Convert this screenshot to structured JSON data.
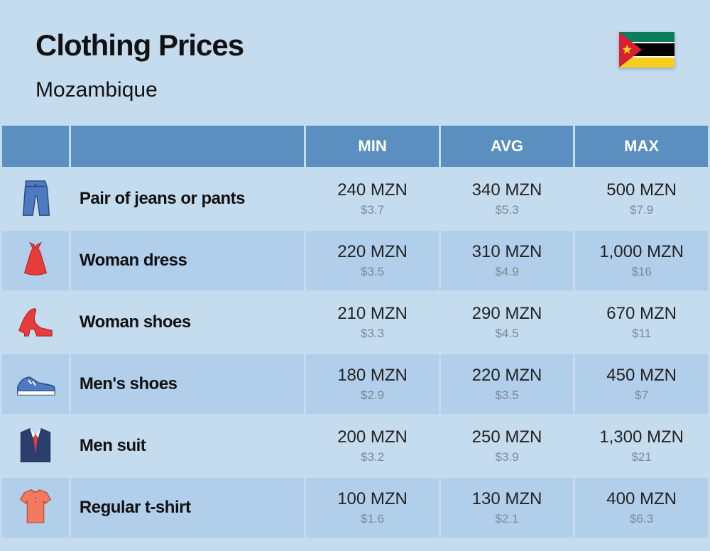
{
  "header": {
    "title": "Clothing Prices",
    "country": "Mozambique"
  },
  "flag": {
    "stripes": [
      "#0a7e5a",
      "#ffffff",
      "#000000",
      "#ffffff",
      "#f8cf1a"
    ],
    "triangle": "#d81f32",
    "star": "#f8cf1a"
  },
  "columns": {
    "min": "MIN",
    "avg": "AVG",
    "max": "MAX"
  },
  "rows": [
    {
      "icon": "jeans",
      "name": "Pair of jeans or pants",
      "min": {
        "main": "240 MZN",
        "sub": "$3.7"
      },
      "avg": {
        "main": "340 MZN",
        "sub": "$5.3"
      },
      "max": {
        "main": "500 MZN",
        "sub": "$7.9"
      }
    },
    {
      "icon": "dress",
      "name": "Woman dress",
      "min": {
        "main": "220 MZN",
        "sub": "$3.5"
      },
      "avg": {
        "main": "310 MZN",
        "sub": "$4.9"
      },
      "max": {
        "main": "1,000 MZN",
        "sub": "$16"
      }
    },
    {
      "icon": "heel",
      "name": "Woman shoes",
      "min": {
        "main": "210 MZN",
        "sub": "$3.3"
      },
      "avg": {
        "main": "290 MZN",
        "sub": "$4.5"
      },
      "max": {
        "main": "670 MZN",
        "sub": "$11"
      }
    },
    {
      "icon": "sneaker",
      "name": "Men's shoes",
      "min": {
        "main": "180 MZN",
        "sub": "$2.9"
      },
      "avg": {
        "main": "220 MZN",
        "sub": "$3.5"
      },
      "max": {
        "main": "450 MZN",
        "sub": "$7"
      }
    },
    {
      "icon": "suit",
      "name": "Men suit",
      "min": {
        "main": "200 MZN",
        "sub": "$3.2"
      },
      "avg": {
        "main": "250 MZN",
        "sub": "$3.9"
      },
      "max": {
        "main": "1,300 MZN",
        "sub": "$21"
      }
    },
    {
      "icon": "tshirt",
      "name": "Regular t-shirt",
      "min": {
        "main": "100 MZN",
        "sub": "$1.6"
      },
      "avg": {
        "main": "130 MZN",
        "sub": "$2.1"
      },
      "max": {
        "main": "400 MZN",
        "sub": "$6.3"
      }
    }
  ],
  "icons": {
    "jeans_color": "#4d7bc3",
    "dress_color": "#e63c3c",
    "heel_color": "#e63c3c",
    "sneaker_color": "#4d7bc3",
    "suit_color": "#2c3e6e",
    "tie_color": "#e63c3c",
    "tshirt_color": "#f27a5e"
  }
}
